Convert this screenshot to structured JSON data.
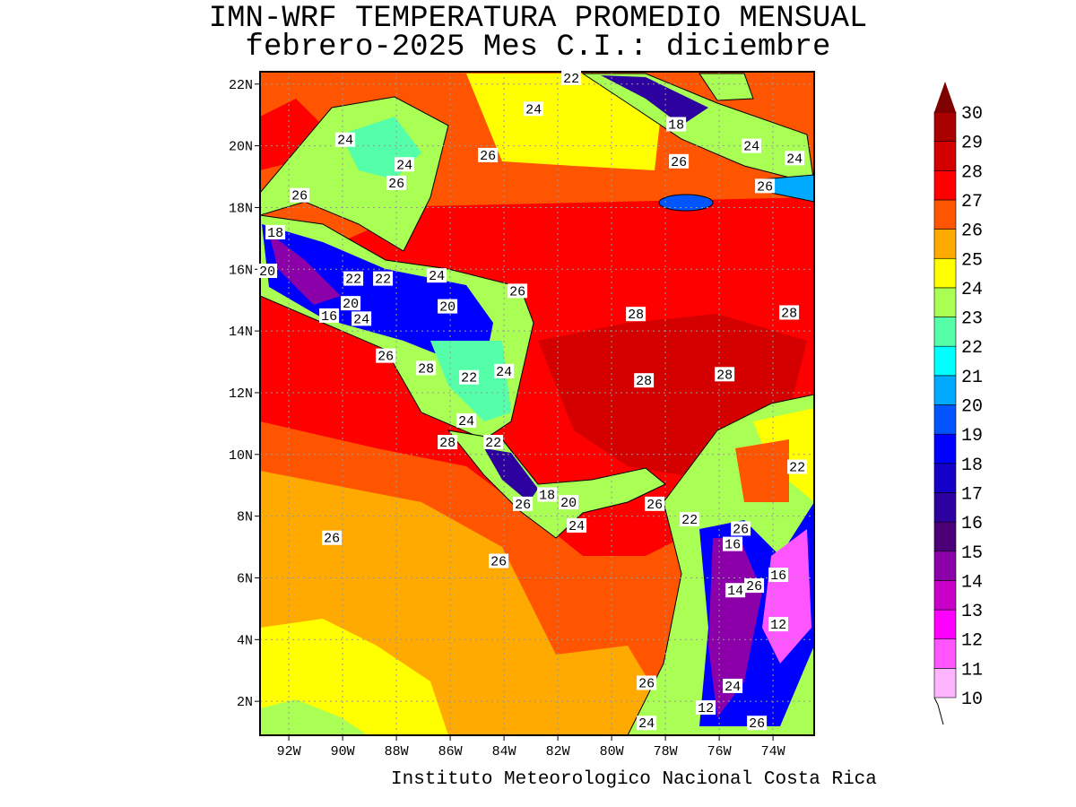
{
  "title": {
    "line1": "IMN-WRF  TEMPERATURA PROMEDIO MENSUAL",
    "line2": "febrero-2025 Mes C.I.: diciembre"
  },
  "credit": "Instituto Meteorologico Nacional Costa Rica",
  "map": {
    "lon_range": [
      -93.07,
      -72.47
    ],
    "lat_range": [
      0.9,
      22.4
    ],
    "lon_ticks": [
      {
        "value": -92,
        "label": "92W"
      },
      {
        "value": -90,
        "label": "90W"
      },
      {
        "value": -88,
        "label": "88W"
      },
      {
        "value": -86,
        "label": "86W"
      },
      {
        "value": -84,
        "label": "84W"
      },
      {
        "value": -82,
        "label": "82W"
      },
      {
        "value": -80,
        "label": "80W"
      },
      {
        "value": -78,
        "label": "78W"
      },
      {
        "value": -76,
        "label": "76W"
      },
      {
        "value": -74,
        "label": "74W"
      }
    ],
    "lat_ticks": [
      {
        "value": 2,
        "label": "2N"
      },
      {
        "value": 4,
        "label": "4N"
      },
      {
        "value": 6,
        "label": "6N"
      },
      {
        "value": 8,
        "label": "8N"
      },
      {
        "value": 10,
        "label": "10N"
      },
      {
        "value": 12,
        "label": "12N"
      },
      {
        "value": 14,
        "label": "14N"
      },
      {
        "value": 16,
        "label": "16N"
      },
      {
        "value": 18,
        "label": "18N"
      },
      {
        "value": 20,
        "label": "20N"
      },
      {
        "value": 22,
        "label": "22N"
      }
    ],
    "contour_labels": [
      {
        "text": "22",
        "lon": -81.5,
        "lat": 22.2
      },
      {
        "text": "24",
        "lon": -82.9,
        "lat": 21.2
      },
      {
        "text": "18",
        "lon": -77.6,
        "lat": 20.7
      },
      {
        "text": "24",
        "lon": -74.8,
        "lat": 20.0
      },
      {
        "text": "24",
        "lon": -73.2,
        "lat": 19.6
      },
      {
        "text": "26",
        "lon": -77.5,
        "lat": 19.5
      },
      {
        "text": "26",
        "lon": -74.3,
        "lat": 18.7
      },
      {
        "text": "24",
        "lon": -89.9,
        "lat": 20.2
      },
      {
        "text": "24",
        "lon": -87.7,
        "lat": 19.4
      },
      {
        "text": "26",
        "lon": -84.6,
        "lat": 19.7
      },
      {
        "text": "26",
        "lon": -88.0,
        "lat": 18.8
      },
      {
        "text": "26",
        "lon": -91.6,
        "lat": 18.4
      },
      {
        "text": "18",
        "lon": -92.5,
        "lat": 17.2
      },
      {
        "text": "20",
        "lon": -92.8,
        "lat": 15.95
      },
      {
        "text": "22",
        "lon": -89.6,
        "lat": 15.7
      },
      {
        "text": "22",
        "lon": -88.5,
        "lat": 15.7
      },
      {
        "text": "24",
        "lon": -86.5,
        "lat": 15.8
      },
      {
        "text": "26",
        "lon": -83.5,
        "lat": 15.3
      },
      {
        "text": "20",
        "lon": -89.7,
        "lat": 14.9
      },
      {
        "text": "20",
        "lon": -86.1,
        "lat": 14.8
      },
      {
        "text": "16",
        "lon": -90.5,
        "lat": 14.5
      },
      {
        "text": "24",
        "lon": -89.3,
        "lat": 14.4
      },
      {
        "text": "28",
        "lon": -79.1,
        "lat": 14.55
      },
      {
        "text": "28",
        "lon": -73.4,
        "lat": 14.6
      },
      {
        "text": "26",
        "lon": -88.4,
        "lat": 13.2
      },
      {
        "text": "28",
        "lon": -86.9,
        "lat": 12.8
      },
      {
        "text": "22",
        "lon": -85.3,
        "lat": 12.5
      },
      {
        "text": "24",
        "lon": -84.0,
        "lat": 12.7
      },
      {
        "text": "28",
        "lon": -78.8,
        "lat": 12.4
      },
      {
        "text": "28",
        "lon": -75.8,
        "lat": 12.6
      },
      {
        "text": "24",
        "lon": -85.4,
        "lat": 11.1
      },
      {
        "text": "28",
        "lon": -86.1,
        "lat": 10.4
      },
      {
        "text": "22",
        "lon": -84.4,
        "lat": 10.4
      },
      {
        "text": "22",
        "lon": -73.1,
        "lat": 9.6
      },
      {
        "text": "18",
        "lon": -82.4,
        "lat": 8.7
      },
      {
        "text": "20",
        "lon": -81.6,
        "lat": 8.45
      },
      {
        "text": "26",
        "lon": -83.3,
        "lat": 8.4
      },
      {
        "text": "24",
        "lon": -81.3,
        "lat": 7.7
      },
      {
        "text": "26",
        "lon": -78.4,
        "lat": 8.4
      },
      {
        "text": "22",
        "lon": -77.1,
        "lat": 7.9
      },
      {
        "text": "26",
        "lon": -75.2,
        "lat": 7.6
      },
      {
        "text": "16",
        "lon": -75.5,
        "lat": 7.1
      },
      {
        "text": "26",
        "lon": -90.4,
        "lat": 7.3
      },
      {
        "text": "26",
        "lon": -84.2,
        "lat": 6.55
      },
      {
        "text": "16",
        "lon": -73.8,
        "lat": 6.1
      },
      {
        "text": "14",
        "lon": -75.4,
        "lat": 5.6
      },
      {
        "text": "26",
        "lon": -74.7,
        "lat": 5.75
      },
      {
        "text": "12",
        "lon": -73.8,
        "lat": 4.5
      },
      {
        "text": "26",
        "lon": -78.7,
        "lat": 2.6
      },
      {
        "text": "24",
        "lon": -75.5,
        "lat": 2.5
      },
      {
        "text": "12",
        "lon": -76.5,
        "lat": 1.8
      },
      {
        "text": "24",
        "lon": -78.7,
        "lat": 1.3
      },
      {
        "text": "26",
        "lon": -74.6,
        "lat": 1.3
      }
    ]
  },
  "colorbar": {
    "levels": [
      "10",
      "11",
      "12",
      "13",
      "14",
      "15",
      "16",
      "17",
      "18",
      "19",
      "20",
      "21",
      "22",
      "23",
      "24",
      "25",
      "26",
      "27",
      "28",
      "29",
      "30"
    ],
    "colors": [
      "#ffb4ff",
      "#ff55ff",
      "#ff00ff",
      "#c800c8",
      "#8c00aa",
      "#4b0078",
      "#2d00a0",
      "#1400c8",
      "#0000ff",
      "#0055ff",
      "#00aaff",
      "#00ffff",
      "#55ffaa",
      "#aaff55",
      "#ffff00",
      "#ffaa00",
      "#ff5500",
      "#ff0000",
      "#d40000",
      "#aa0000"
    ],
    "over_color": "#7f0000"
  }
}
